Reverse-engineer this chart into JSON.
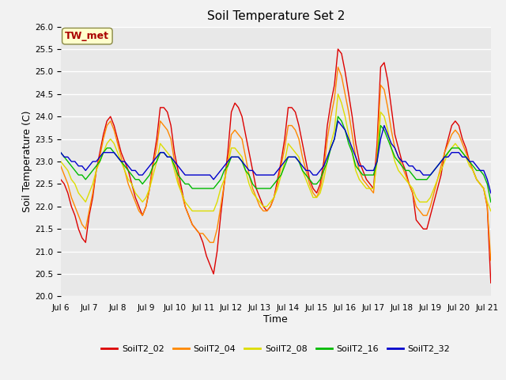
{
  "title": "Soil Temperature Set 2",
  "xlabel": "Time",
  "ylabel": "Soil Temperature (C)",
  "ylim": [
    20.0,
    26.0
  ],
  "yticks": [
    20.0,
    20.5,
    21.0,
    21.5,
    22.0,
    22.5,
    23.0,
    23.5,
    24.0,
    24.5,
    25.0,
    25.5,
    26.0
  ],
  "annotation_text": "TW_met",
  "annotation_color": "#aa0000",
  "annotation_bg": "#ffffcc",
  "annotation_edge": "#888844",
  "series_colors": {
    "SoilT2_02": "#dd0000",
    "SoilT2_04": "#ff8800",
    "SoilT2_08": "#dddd00",
    "SoilT2_16": "#00bb00",
    "SoilT2_32": "#0000cc"
  },
  "x_tick_labels": [
    "Jul 6",
    "Jul 7",
    "Jul 8",
    "Jul 9",
    "Jul 10",
    "Jul 11",
    "Jul 12",
    "Jul 13",
    "Jul 14",
    "Jul 15",
    "Jul 16",
    "Jul 17",
    "Jul 18",
    "Jul 19",
    "Jul 20",
    "Jul 21"
  ],
  "x_tick_positions": [
    0,
    8,
    16,
    24,
    32,
    40,
    48,
    56,
    64,
    72,
    80,
    88,
    96,
    104,
    112,
    120
  ],
  "SoilT2_02": [
    22.6,
    22.5,
    22.3,
    22.0,
    21.8,
    21.5,
    21.3,
    21.2,
    21.8,
    22.2,
    22.8,
    23.2,
    23.6,
    23.9,
    24.0,
    23.8,
    23.5,
    23.2,
    23.0,
    22.8,
    22.5,
    22.2,
    22.0,
    21.8,
    22.0,
    22.4,
    23.0,
    23.5,
    24.2,
    24.2,
    24.1,
    23.8,
    23.2,
    22.8,
    22.4,
    22.0,
    21.8,
    21.6,
    21.5,
    21.4,
    21.2,
    20.9,
    20.7,
    20.5,
    21.0,
    21.8,
    22.5,
    23.2,
    24.1,
    24.3,
    24.2,
    24.0,
    23.6,
    23.2,
    22.8,
    22.4,
    22.2,
    22.0,
    21.9,
    22.0,
    22.2,
    22.6,
    23.0,
    23.5,
    24.2,
    24.2,
    24.1,
    23.8,
    23.4,
    23.0,
    22.6,
    22.4,
    22.3,
    22.5,
    23.0,
    23.8,
    24.3,
    24.7,
    25.5,
    25.4,
    25.0,
    24.5,
    24.0,
    23.4,
    23.0,
    22.8,
    22.6,
    22.5,
    22.4,
    23.4,
    25.1,
    25.2,
    24.8,
    24.2,
    23.6,
    23.3,
    23.0,
    22.8,
    22.5,
    22.3,
    21.7,
    21.6,
    21.5,
    21.5,
    21.8,
    22.1,
    22.4,
    22.7,
    23.2,
    23.5,
    23.8,
    23.9,
    23.8,
    23.5,
    23.3,
    23.0,
    22.8,
    22.6,
    22.5,
    22.4,
    22.0,
    20.3
  ],
  "SoilT2_04": [
    22.9,
    22.7,
    22.5,
    22.2,
    22.0,
    21.8,
    21.6,
    21.5,
    21.9,
    22.3,
    22.8,
    23.1,
    23.5,
    23.8,
    23.9,
    23.7,
    23.4,
    23.1,
    22.8,
    22.5,
    22.3,
    22.1,
    21.9,
    21.8,
    22.0,
    22.4,
    22.9,
    23.3,
    23.9,
    23.8,
    23.7,
    23.5,
    23.0,
    22.6,
    22.3,
    22.0,
    21.8,
    21.6,
    21.5,
    21.4,
    21.4,
    21.3,
    21.2,
    21.2,
    21.5,
    22.0,
    22.5,
    23.0,
    23.6,
    23.7,
    23.6,
    23.5,
    23.1,
    22.7,
    22.4,
    22.2,
    22.0,
    21.9,
    21.9,
    22.0,
    22.2,
    22.5,
    22.9,
    23.3,
    23.8,
    23.8,
    23.7,
    23.5,
    23.1,
    22.8,
    22.5,
    22.3,
    22.2,
    22.4,
    22.8,
    23.5,
    24.0,
    24.4,
    25.1,
    24.9,
    24.5,
    24.1,
    23.6,
    23.1,
    22.8,
    22.6,
    22.5,
    22.4,
    22.3,
    23.2,
    24.7,
    24.6,
    24.2,
    23.7,
    23.3,
    23.1,
    22.9,
    22.7,
    22.5,
    22.3,
    22.0,
    21.9,
    21.8,
    21.8,
    22.0,
    22.3,
    22.6,
    22.9,
    23.2,
    23.4,
    23.6,
    23.7,
    23.6,
    23.4,
    23.2,
    23.0,
    22.8,
    22.6,
    22.5,
    22.4,
    22.0,
    20.8
  ],
  "SoilT2_08": [
    23.0,
    22.9,
    22.8,
    22.6,
    22.5,
    22.3,
    22.2,
    22.1,
    22.3,
    22.5,
    22.8,
    23.0,
    23.2,
    23.4,
    23.5,
    23.4,
    23.2,
    23.0,
    22.8,
    22.6,
    22.5,
    22.3,
    22.2,
    22.1,
    22.2,
    22.4,
    22.7,
    23.0,
    23.4,
    23.3,
    23.2,
    23.1,
    22.8,
    22.5,
    22.3,
    22.1,
    22.0,
    21.9,
    21.9,
    21.9,
    21.9,
    21.9,
    21.9,
    21.9,
    22.1,
    22.4,
    22.6,
    22.9,
    23.3,
    23.3,
    23.2,
    23.1,
    22.8,
    22.5,
    22.3,
    22.2,
    22.1,
    22.0,
    22.0,
    22.1,
    22.2,
    22.4,
    22.7,
    23.0,
    23.4,
    23.3,
    23.2,
    23.1,
    22.8,
    22.6,
    22.4,
    22.2,
    22.2,
    22.3,
    22.6,
    23.0,
    23.4,
    23.7,
    24.5,
    24.3,
    24.0,
    23.6,
    23.2,
    22.8,
    22.6,
    22.5,
    22.4,
    22.4,
    22.4,
    23.0,
    24.1,
    24.0,
    23.7,
    23.3,
    23.0,
    22.8,
    22.7,
    22.6,
    22.5,
    22.4,
    22.2,
    22.1,
    22.1,
    22.1,
    22.2,
    22.4,
    22.6,
    22.8,
    23.0,
    23.2,
    23.3,
    23.4,
    23.3,
    23.2,
    23.1,
    22.9,
    22.8,
    22.6,
    22.5,
    22.4,
    22.1,
    21.9
  ],
  "SoilT2_16": [
    23.2,
    23.1,
    23.0,
    22.9,
    22.8,
    22.7,
    22.7,
    22.6,
    22.7,
    22.8,
    22.9,
    23.0,
    23.2,
    23.3,
    23.3,
    23.2,
    23.1,
    23.0,
    22.9,
    22.8,
    22.7,
    22.6,
    22.6,
    22.5,
    22.6,
    22.7,
    22.9,
    23.0,
    23.2,
    23.2,
    23.1,
    23.1,
    22.9,
    22.7,
    22.6,
    22.5,
    22.5,
    22.4,
    22.4,
    22.4,
    22.4,
    22.4,
    22.4,
    22.4,
    22.5,
    22.6,
    22.8,
    22.9,
    23.1,
    23.1,
    23.1,
    23.0,
    22.8,
    22.7,
    22.5,
    22.4,
    22.4,
    22.4,
    22.4,
    22.4,
    22.5,
    22.6,
    22.7,
    22.9,
    23.1,
    23.1,
    23.1,
    23.0,
    22.8,
    22.7,
    22.6,
    22.5,
    22.5,
    22.6,
    22.8,
    23.0,
    23.3,
    23.5,
    24.0,
    23.9,
    23.7,
    23.4,
    23.2,
    22.9,
    22.8,
    22.7,
    22.7,
    22.7,
    22.7,
    23.0,
    23.8,
    23.7,
    23.5,
    23.3,
    23.1,
    23.0,
    22.9,
    22.8,
    22.8,
    22.7,
    22.6,
    22.6,
    22.6,
    22.6,
    22.7,
    22.8,
    22.9,
    23.0,
    23.1,
    23.2,
    23.3,
    23.3,
    23.3,
    23.2,
    23.1,
    23.0,
    22.9,
    22.8,
    22.8,
    22.7,
    22.5,
    22.1
  ],
  "SoilT2_32": [
    23.2,
    23.1,
    23.1,
    23.0,
    23.0,
    22.9,
    22.9,
    22.8,
    22.9,
    23.0,
    23.0,
    23.1,
    23.2,
    23.2,
    23.2,
    23.2,
    23.1,
    23.0,
    23.0,
    22.9,
    22.8,
    22.8,
    22.7,
    22.7,
    22.8,
    22.9,
    23.0,
    23.1,
    23.2,
    23.2,
    23.1,
    23.1,
    23.0,
    22.9,
    22.8,
    22.7,
    22.7,
    22.7,
    22.7,
    22.7,
    22.7,
    22.7,
    22.7,
    22.6,
    22.7,
    22.8,
    22.9,
    23.0,
    23.1,
    23.1,
    23.1,
    23.0,
    22.9,
    22.8,
    22.8,
    22.7,
    22.7,
    22.7,
    22.7,
    22.7,
    22.7,
    22.8,
    22.9,
    23.0,
    23.1,
    23.1,
    23.1,
    23.0,
    22.9,
    22.8,
    22.8,
    22.7,
    22.7,
    22.8,
    22.9,
    23.1,
    23.3,
    23.5,
    23.9,
    23.8,
    23.7,
    23.5,
    23.3,
    23.1,
    22.9,
    22.9,
    22.8,
    22.8,
    22.8,
    23.0,
    23.5,
    23.8,
    23.6,
    23.4,
    23.3,
    23.1,
    23.0,
    23.0,
    22.9,
    22.9,
    22.8,
    22.8,
    22.7,
    22.7,
    22.7,
    22.8,
    22.9,
    23.0,
    23.1,
    23.1,
    23.2,
    23.2,
    23.2,
    23.1,
    23.1,
    23.0,
    23.0,
    22.9,
    22.8,
    22.8,
    22.6,
    22.3
  ]
}
